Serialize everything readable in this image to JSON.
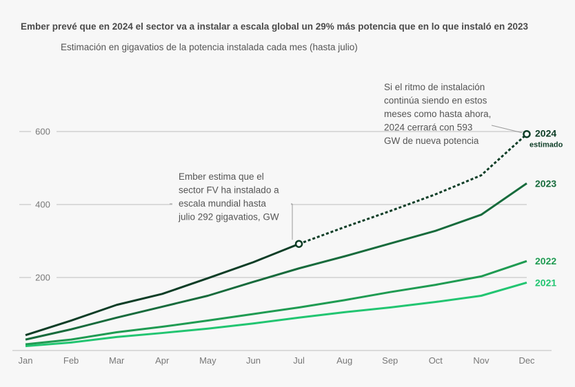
{
  "chart_data": {
    "type": "line",
    "title": "Ember prevé que en 2024 el sector va a instalar a escala global un 29% más potencia que en lo que instaló en 2023",
    "subtitle": "Estimación en gigavatios de la potencia instalada cada mes (hasta julio)",
    "xlabel": "",
    "ylabel": "",
    "categories": [
      "Jan",
      "Feb",
      "Mar",
      "Apr",
      "May",
      "Jun",
      "Jul",
      "Aug",
      "Sep",
      "Oct",
      "Nov",
      "Dec"
    ],
    "ylim": [
      0,
      650
    ],
    "yticks": [
      200,
      400,
      600
    ],
    "grid": true,
    "series": [
      {
        "name": "2024",
        "sublabel": "estimado",
        "color": "#0d3d26",
        "values": [
          42,
          82,
          125,
          155,
          198,
          242,
          292,
          338,
          382,
          428,
          480,
          593
        ],
        "solid_until_index": 6
      },
      {
        "name": "2023",
        "color": "#176b3c",
        "values": [
          30,
          58,
          90,
          120,
          150,
          188,
          225,
          258,
          293,
          328,
          372,
          458
        ]
      },
      {
        "name": "2022",
        "color": "#1f9b52",
        "values": [
          17,
          30,
          50,
          65,
          82,
          100,
          118,
          138,
          160,
          180,
          203,
          245
        ]
      },
      {
        "name": "2021",
        "color": "#22c571",
        "values": [
          12,
          22,
          37,
          48,
          60,
          74,
          90,
          105,
          118,
          133,
          150,
          186
        ]
      }
    ],
    "annotations": [
      {
        "lines": [
          "Ember estima que el",
          "sector FV ha instalado a",
          "escala mundial hasta",
          "julio 292 gigavatios, GW"
        ],
        "target_x": "Jul",
        "target_y": 292
      },
      {
        "lines": [
          "Si el ritmo de instalación",
          "continúa siendo en estos",
          "meses como hasta ahora,",
          "2024 cerrará con 593",
          "GW de nueva potencia"
        ],
        "target_x": "Dec",
        "target_y": 593
      }
    ]
  }
}
